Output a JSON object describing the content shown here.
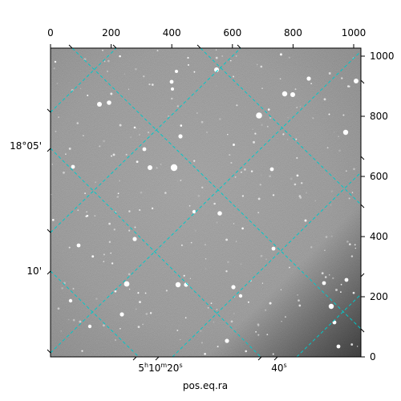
{
  "plot": {
    "top_ticks": [
      "0",
      "200",
      "400",
      "600",
      "800",
      "1000"
    ],
    "right_ticks": [
      "0",
      "200",
      "400",
      "600",
      "800",
      "1000"
    ],
    "dec_labels": {
      "a": "18°05'",
      "b": "10'"
    },
    "ra_label_1": {
      "h": "5",
      "hu": "h",
      "m": "10",
      "mu": "m",
      "s": "20",
      "su": "s"
    },
    "ra_label_2": {
      "s": "40",
      "su": "s"
    },
    "xlabel": "pos.eq.ra",
    "grid_color": "#00c8c8",
    "image": "grayscale astronomical star field"
  }
}
